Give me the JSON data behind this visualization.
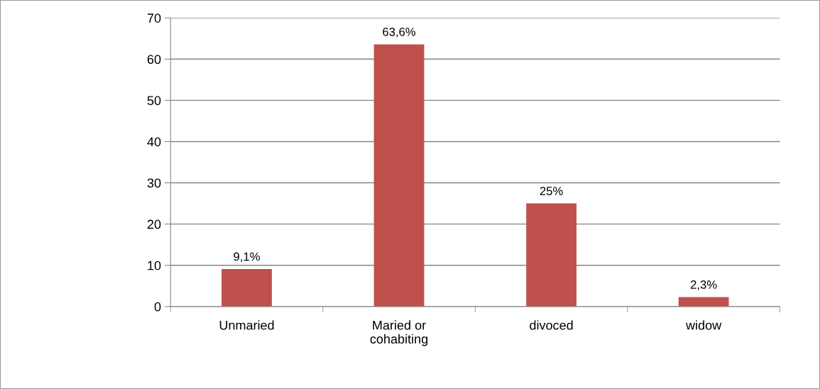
{
  "chart_data": {
    "type": "bar",
    "categories": [
      "Unmaried",
      "Maried or\ncohabiting",
      "divoced",
      "widow"
    ],
    "values": [
      9.1,
      63.6,
      25,
      2.3
    ],
    "value_labels": [
      "9,1%",
      "63,6%",
      "25%",
      "2,3%"
    ],
    "color": "#c0504d",
    "ylim": [
      0,
      70
    ],
    "yticks": [
      0,
      10,
      20,
      30,
      40,
      50,
      60,
      70
    ],
    "grid": "y",
    "legend": false
  }
}
